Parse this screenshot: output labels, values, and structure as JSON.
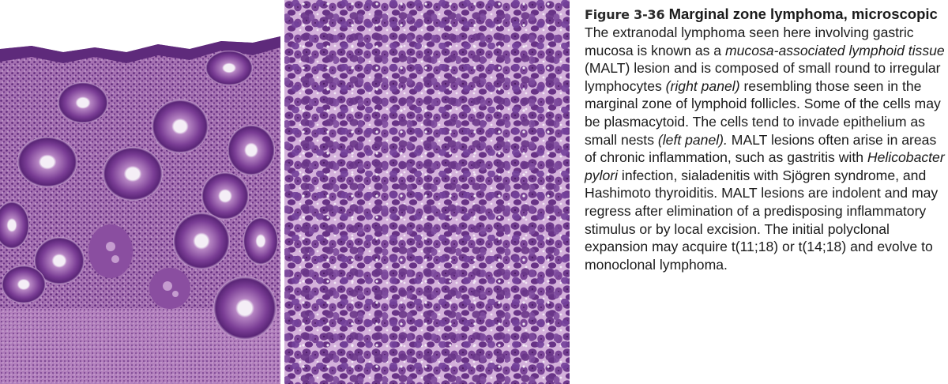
{
  "figure": {
    "label": "Figure 3-36",
    "title": "Marginal zone lymphoma, microscopic",
    "body": [
      {
        "t": "The extranodal lymphoma seen here involving gastric mucosa is known as a "
      },
      {
        "t": "mucosa-associated lymphoid  tissue",
        "i": true
      },
      {
        "t": " (MALT) lesion and is composed of small round to irregular lymphocytes "
      },
      {
        "t": "(right panel)",
        "i": true
      },
      {
        "t": " resembling those seen in the marginal zone of lymphoid follicles. Some of the cells may be plasmacytoid. The cells tend to invade epithe­lium as small nests "
      },
      {
        "t": "(left  panel).",
        "i": true
      },
      {
        "t": " MALT lesions often arise in areas of chronic inflammation, such as gastritis with "
      },
      {
        "t": "Helicobacter  pylori",
        "i": true
      },
      {
        "t": " infection, sialadenitis with Sjögren syndrome, and Hashi­moto thyroiditis. MALT lesions are indolent and may regress after elimination of a predisposing inflammatory stimulus or by local excision. The initial polyclonal expansion may acquire t(11;18) or t(14;18) and evolve to monoclonal lymphoma."
      }
    ]
  },
  "colors": {
    "tissue_base": "#a36db0",
    "nuclei": "#5a2577",
    "gland_rim": "#6b2e86",
    "lumen": "#f4eef6",
    "cell_nucleus": "#6e3a8c",
    "cell_background": "#d5b4dc"
  }
}
